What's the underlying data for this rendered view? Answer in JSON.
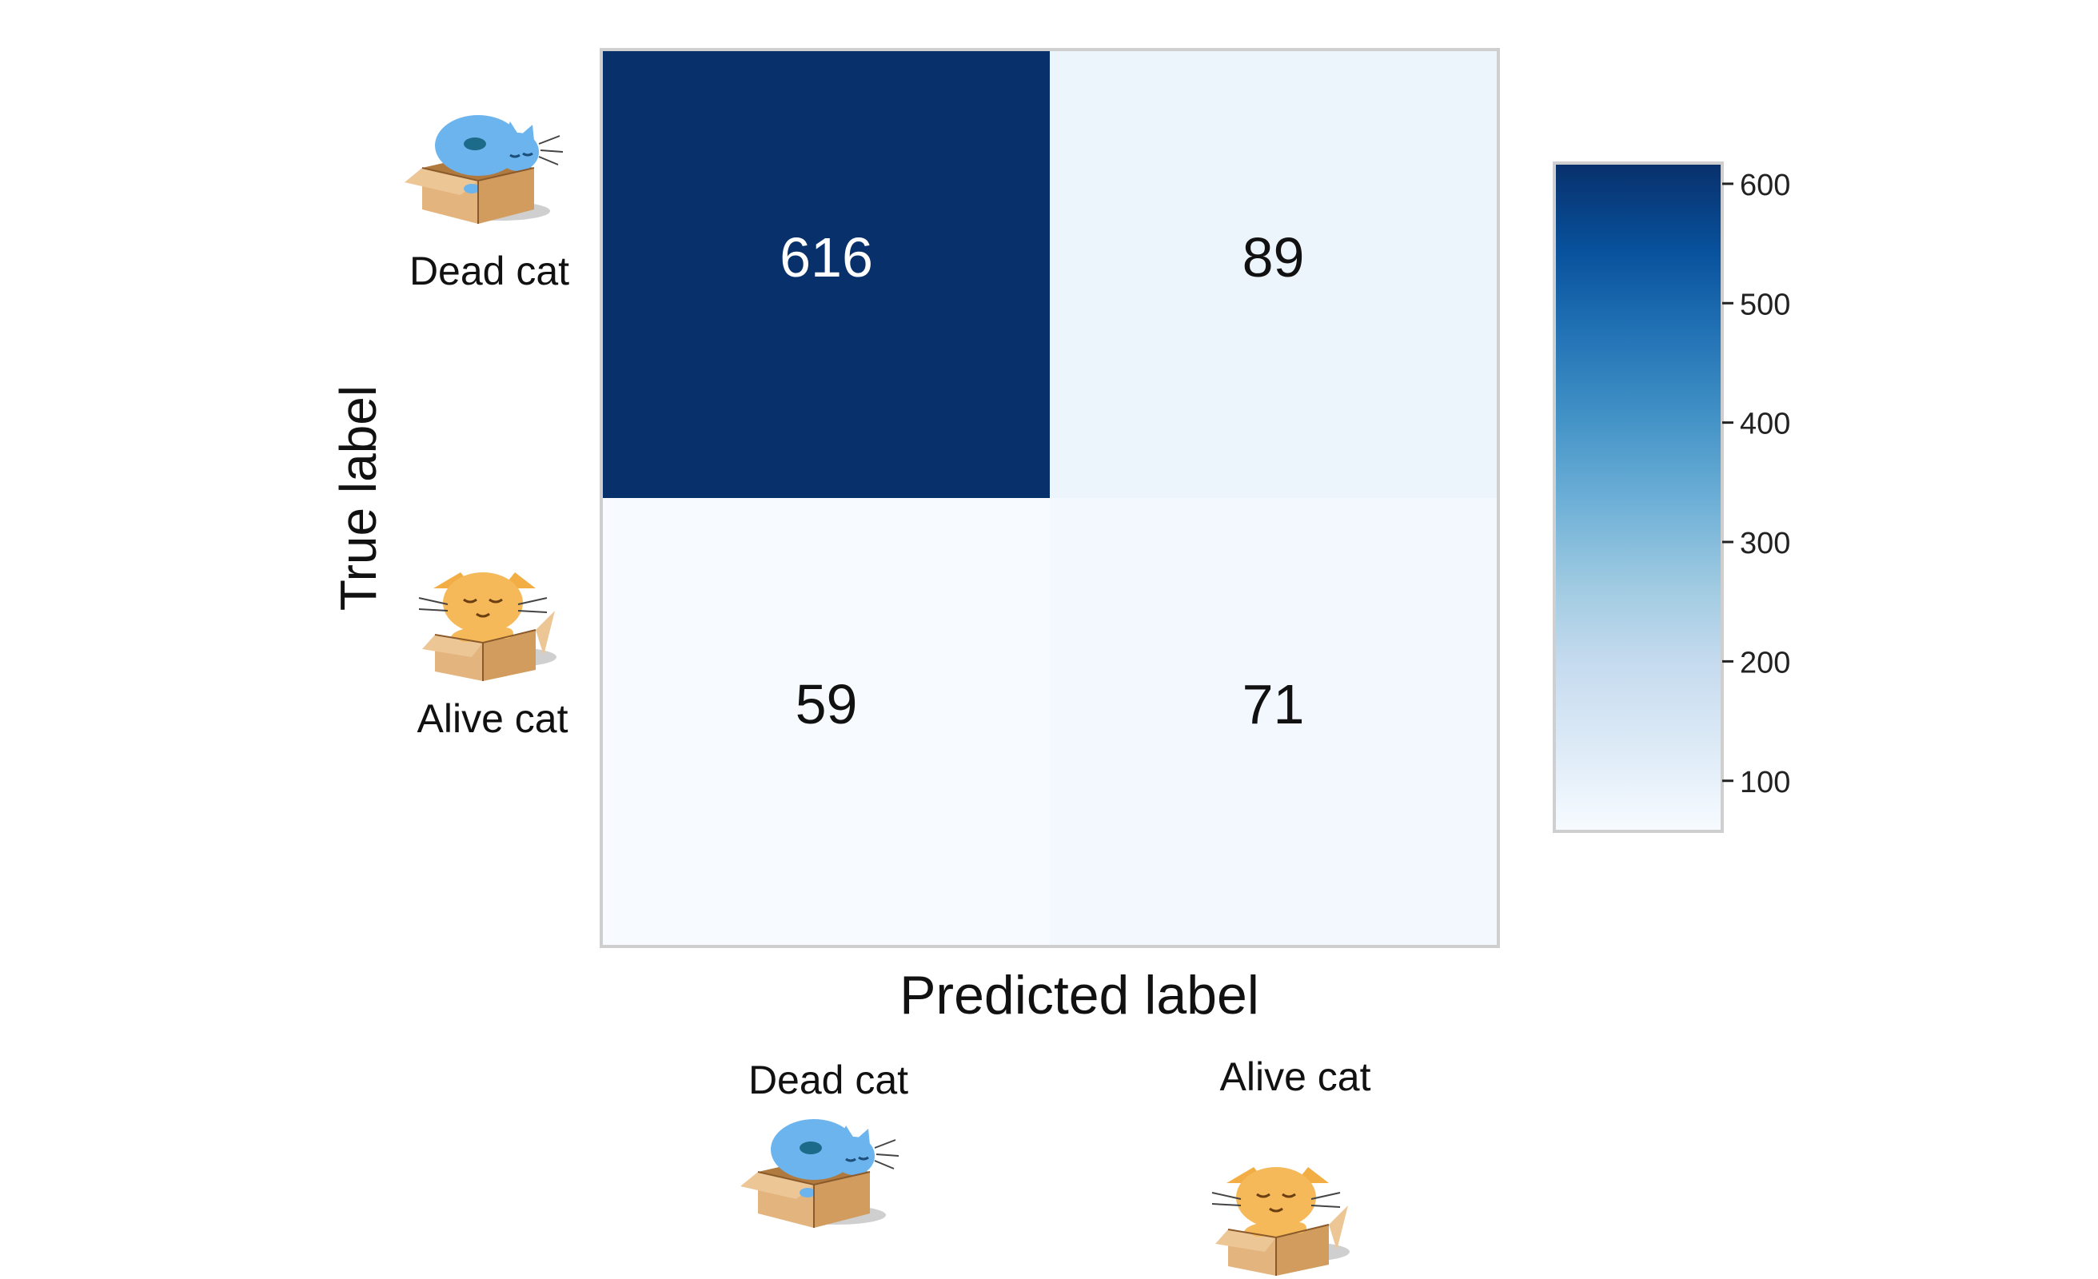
{
  "chart_data": {
    "type": "heatmap",
    "title": "",
    "xlabel": "Predicted label",
    "ylabel": "True label",
    "x_categories": [
      "Dead cat",
      "Alive cat"
    ],
    "y_categories": [
      "Dead cat",
      "Alive cat"
    ],
    "values": [
      [
        616,
        89
      ],
      [
        59,
        71
      ]
    ],
    "colormap": "Blues",
    "colorbar": {
      "ticks": [
        100,
        200,
        300,
        400,
        500,
        600
      ],
      "range": [
        59,
        616
      ]
    },
    "colors": {
      "low": "#f7fbff",
      "mid": "#6baed6",
      "high": "#08306b"
    },
    "icons": {
      "dead": "sleeping-cat-in-box-icon",
      "alive": "smiling-cat-in-box-icon"
    }
  }
}
